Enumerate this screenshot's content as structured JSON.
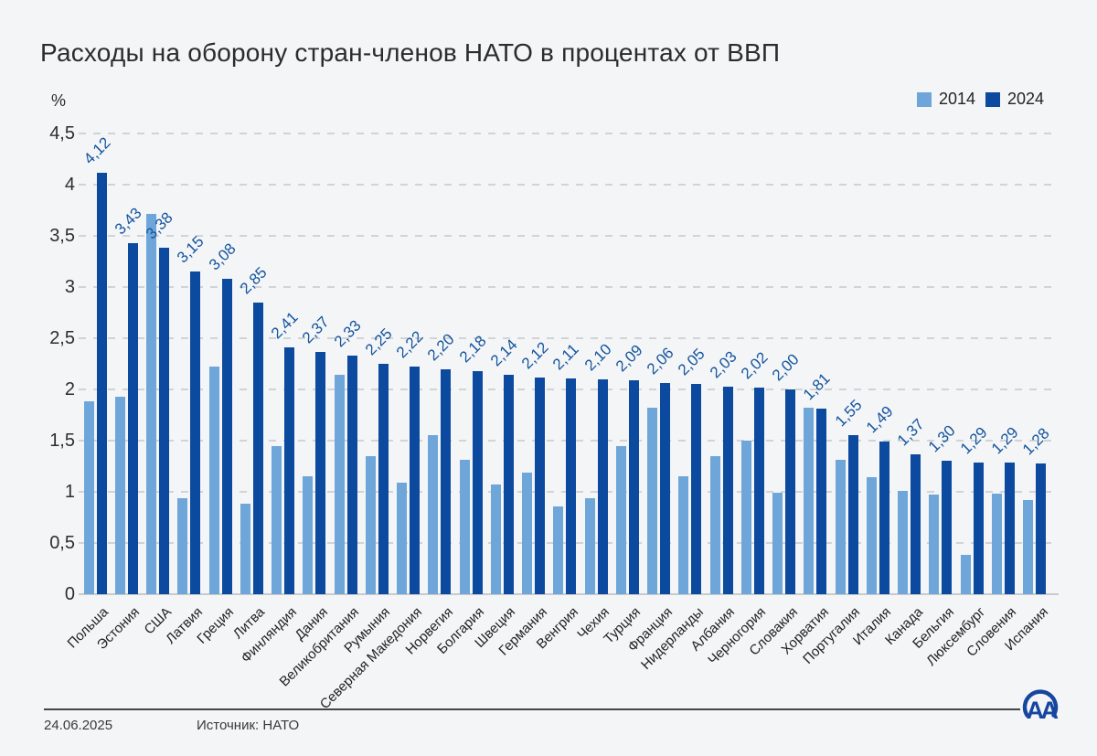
{
  "title": "Расходы на оборону стран-членов НАТО в процентах от ВВП",
  "y_axis": {
    "unit": "%",
    "ticks": [
      {
        "value": 0,
        "label": "0"
      },
      {
        "value": 0.5,
        "label": "0,5"
      },
      {
        "value": 1,
        "label": "1"
      },
      {
        "value": 1.5,
        "label": "1,5"
      },
      {
        "value": 2,
        "label": "2"
      },
      {
        "value": 2.5,
        "label": "2,5"
      },
      {
        "value": 3,
        "label": "3"
      },
      {
        "value": 3.5,
        "label": "3,5"
      },
      {
        "value": 4,
        "label": "4"
      },
      {
        "value": 4.5,
        "label": "4,5"
      }
    ]
  },
  "legend": {
    "items": [
      {
        "label": "2014",
        "color": "#6fa6d9"
      },
      {
        "label": "2024",
        "color": "#0b4a9e"
      }
    ]
  },
  "chart_data": {
    "type": "bar",
    "title": "Расходы на оборону стран-членов НАТО в процентах от ВВП",
    "ylabel": "%",
    "ylim": [
      0,
      4.5
    ],
    "grid": true,
    "legend_position": "top-right",
    "categories": [
      "Польша",
      "Эстония",
      "США",
      "Латвия",
      "Греция",
      "Литва",
      "Финляндия",
      "Дания",
      "Великобритания",
      "Румыния",
      "Северная Македония",
      "Норвегия",
      "Болгария",
      "Швеция",
      "Германия",
      "Венгрия",
      "Чехия",
      "Турция",
      "Франция",
      "Нидерланды",
      "Албания",
      "Черногория",
      "Словакия",
      "Хорватия",
      "Португалия",
      "Италия",
      "Канада",
      "Бельгия",
      "Люксембург",
      "Словения",
      "Испания"
    ],
    "series": [
      {
        "name": "2014",
        "color": "#6fa6d9",
        "values": [
          1.88,
          1.93,
          3.71,
          0.94,
          2.22,
          0.88,
          1.45,
          1.15,
          2.14,
          1.35,
          1.09,
          1.55,
          1.31,
          1.07,
          1.19,
          0.86,
          0.94,
          1.45,
          1.82,
          1.15,
          1.35,
          1.5,
          0.99,
          1.82,
          1.31,
          1.14,
          1.01,
          0.97,
          0.38,
          0.98,
          0.92
        ]
      },
      {
        "name": "2024",
        "color": "#0b4a9e",
        "values": [
          4.12,
          3.43,
          3.38,
          3.15,
          3.08,
          2.85,
          2.41,
          2.37,
          2.33,
          2.25,
          2.22,
          2.2,
          2.18,
          2.14,
          2.12,
          2.11,
          2.1,
          2.09,
          2.06,
          2.05,
          2.03,
          2.02,
          2.0,
          1.81,
          1.55,
          1.49,
          1.37,
          1.3,
          1.29,
          1.29,
          1.28
        ],
        "value_labels": [
          "4,12",
          "3,43",
          "3,38",
          "3,15",
          "3,08",
          "2,85",
          "2,41",
          "2,37",
          "2,33",
          "2,25",
          "2,22",
          "2,20",
          "2,18",
          "2,14",
          "2,12",
          "2,11",
          "2,10",
          "2,09",
          "2,06",
          "2,05",
          "2,03",
          "2,02",
          "2,00",
          "1,81",
          "1,55",
          "1,49",
          "1,37",
          "1,30",
          "1,29",
          "1,29",
          "1,28"
        ]
      }
    ]
  },
  "footer": {
    "date": "24.06.2025",
    "source": "Источник: НАТО",
    "logo": "anadolu-agency-logo"
  }
}
